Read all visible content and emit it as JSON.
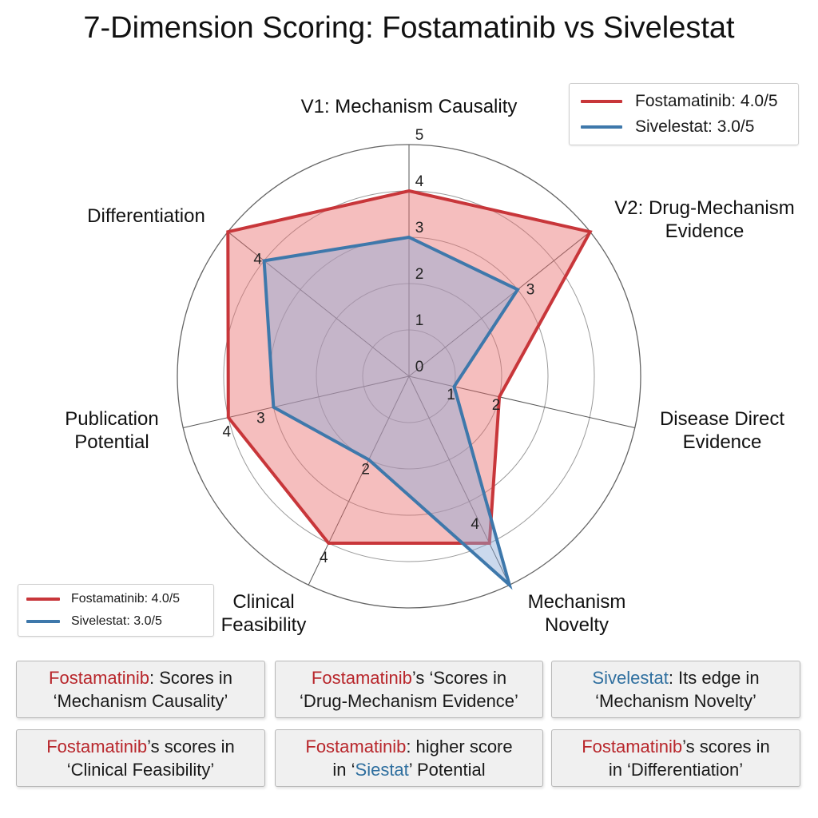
{
  "title": "7-Dimension Scoring: Fostamatinib vs Sivelestat",
  "colors": {
    "fostamatinib": "#c8363a",
    "fostamatinib_fill": "rgba(232,110,110,0.45)",
    "sivelestat": "#3e78ab",
    "sivelestat_fill": "rgba(140,170,215,0.45)",
    "grid": "#888888"
  },
  "chart_data": {
    "type": "radar",
    "title": "7-Dimension Scoring: Fostamatinib vs Sivelestat",
    "axes": [
      "V1: Mechanism Causality",
      "V2: Drug-Mechanism Evidence",
      "Disease Direct Evidence",
      "Mechanism Novelty",
      "Clinical Feasibility",
      "Publication Potential",
      "Differentiation"
    ],
    "rlim": [
      0,
      5
    ],
    "ticks": [
      "0",
      "1",
      "2",
      "3",
      "4",
      "5"
    ],
    "series": [
      {
        "name": "Fostamatinib",
        "legend": "Fostamatinib: 4.0/5",
        "values": [
          4,
          5,
          2,
          4,
          4,
          4,
          5
        ]
      },
      {
        "name": "Sivelestat",
        "legend": "Sivelestat: 3.0/5",
        "values": [
          3,
          3,
          1,
          5,
          2,
          3,
          4
        ]
      }
    ],
    "point_labels": [
      {
        "axis": 6,
        "text": "4"
      },
      {
        "axis": 1,
        "text": "3"
      },
      {
        "axis": 2,
        "text": "1"
      },
      {
        "axis": 2,
        "text": "2"
      },
      {
        "axis": 5,
        "text": "3"
      },
      {
        "axis": 5,
        "text": "4"
      },
      {
        "axis": 4,
        "text": "2"
      },
      {
        "axis": 4,
        "text": "4"
      },
      {
        "axis": 3,
        "text": "4"
      }
    ],
    "legend_entries": [
      "Fostamatinib: 4.0/5",
      "Sivelestat: 3.0/5"
    ]
  },
  "axis_label_lines": [
    [
      "V1: Mechanism Causality"
    ],
    [
      "V2: Drug-Mechanism",
      "Evidence"
    ],
    [
      "Disease Direct",
      "Evidence"
    ],
    [
      "Mechanism",
      "Novelty"
    ],
    [
      "Clinical",
      "Feasibility"
    ],
    [
      "Publication",
      "Potential"
    ],
    [
      "Differentiation"
    ]
  ],
  "legend": {
    "fostamatinib": "Fostamatinib: 4.0/5",
    "sivelestat": "Sivelestat: 3.0/5"
  },
  "notes": {
    "n1": {
      "drug": "Fostamatinib",
      "rest": ": Scores in",
      "line2": "‘Mechanism Causality’"
    },
    "n2": {
      "drug": "Fostamatinib",
      "rest": "’s ‘Scores in",
      "line2": "‘Drug-Mechanism Evidence’"
    },
    "n3": {
      "drug": "Sivelestat",
      "rest": ": Its edge in",
      "line2": "‘Mechanism Novelty’"
    },
    "n4": {
      "drug": "Fostamatinib",
      "rest": "’s scores in",
      "line2": "‘Clinical Feasibility’"
    },
    "n5": {
      "drug": "Fostamatinib",
      "rest": ": higher score",
      "line2_pre": "in ‘",
      "line2_hl": "Siestat",
      "line2_post": "’ Potential"
    },
    "n6": {
      "drug": "Fostamatinib",
      "rest": "’s scores in",
      "line2": "in ‘Differentiation’"
    }
  }
}
